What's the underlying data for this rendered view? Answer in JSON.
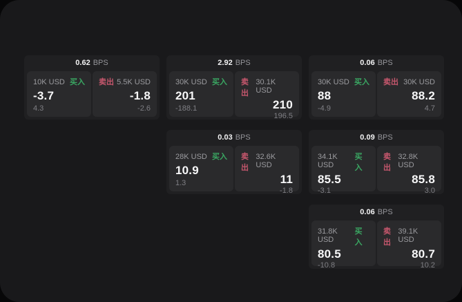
{
  "colors": {
    "page_bg": "#19191b",
    "card_bg": "#202022",
    "tile_bg": "#2a2a2c",
    "buy_green": "#3aa662",
    "sell_red": "#c6576d",
    "primary_text": "#f7f7f8",
    "muted_text": "#9b9b9f"
  },
  "labels": {
    "buy": "买入",
    "sell": "卖出",
    "bps_unit": "BPS"
  },
  "cards": [
    {
      "bps_value": "0.62",
      "bps_unit": "BPS",
      "col": 1,
      "row": 1,
      "buy": {
        "amount": "10K USD",
        "side_label": "买入",
        "price": "-3.7",
        "delta": "4.3"
      },
      "sell": {
        "amount": "5.5K USD",
        "side_label": "卖出",
        "price": "-1.8",
        "delta": "-2.6"
      }
    },
    {
      "bps_value": "2.92",
      "bps_unit": "BPS",
      "col": 2,
      "row": 1,
      "buy": {
        "amount": "30K USD",
        "side_label": "买入",
        "price": "201",
        "delta": "-188.1"
      },
      "sell": {
        "amount": "30.1K USD",
        "side_label": "卖出",
        "price": "210",
        "delta": "196.5"
      }
    },
    {
      "bps_value": "0.06",
      "bps_unit": "BPS",
      "col": 3,
      "row": 1,
      "buy": {
        "amount": "30K USD",
        "side_label": "买入",
        "price": "88",
        "delta": "-4.9"
      },
      "sell": {
        "amount": "30K USD",
        "side_label": "卖出",
        "price": "88.2",
        "delta": "4.7"
      }
    },
    {
      "bps_value": "0.03",
      "bps_unit": "BPS",
      "col": 2,
      "row": 2,
      "buy": {
        "amount": "28K USD",
        "side_label": "买入",
        "price": "10.9",
        "delta": "1.3"
      },
      "sell": {
        "amount": "32.6K USD",
        "side_label": "卖出",
        "price": "11",
        "delta": "-1.8"
      }
    },
    {
      "bps_value": "0.09",
      "bps_unit": "BPS",
      "col": 3,
      "row": 2,
      "buy": {
        "amount": "34.1K USD",
        "side_label": "买入",
        "price": "85.5",
        "delta": "-3.1"
      },
      "sell": {
        "amount": "32.8K USD",
        "side_label": "卖出",
        "price": "85.8",
        "delta": "3.0"
      }
    },
    {
      "bps_value": "0.06",
      "bps_unit": "BPS",
      "col": 3,
      "row": 3,
      "buy": {
        "amount": "31.8K USD",
        "side_label": "买入",
        "price": "80.5",
        "delta": "-10.8"
      },
      "sell": {
        "amount": "39.1K USD",
        "side_label": "卖出",
        "price": "80.7",
        "delta": "10.2"
      }
    }
  ]
}
